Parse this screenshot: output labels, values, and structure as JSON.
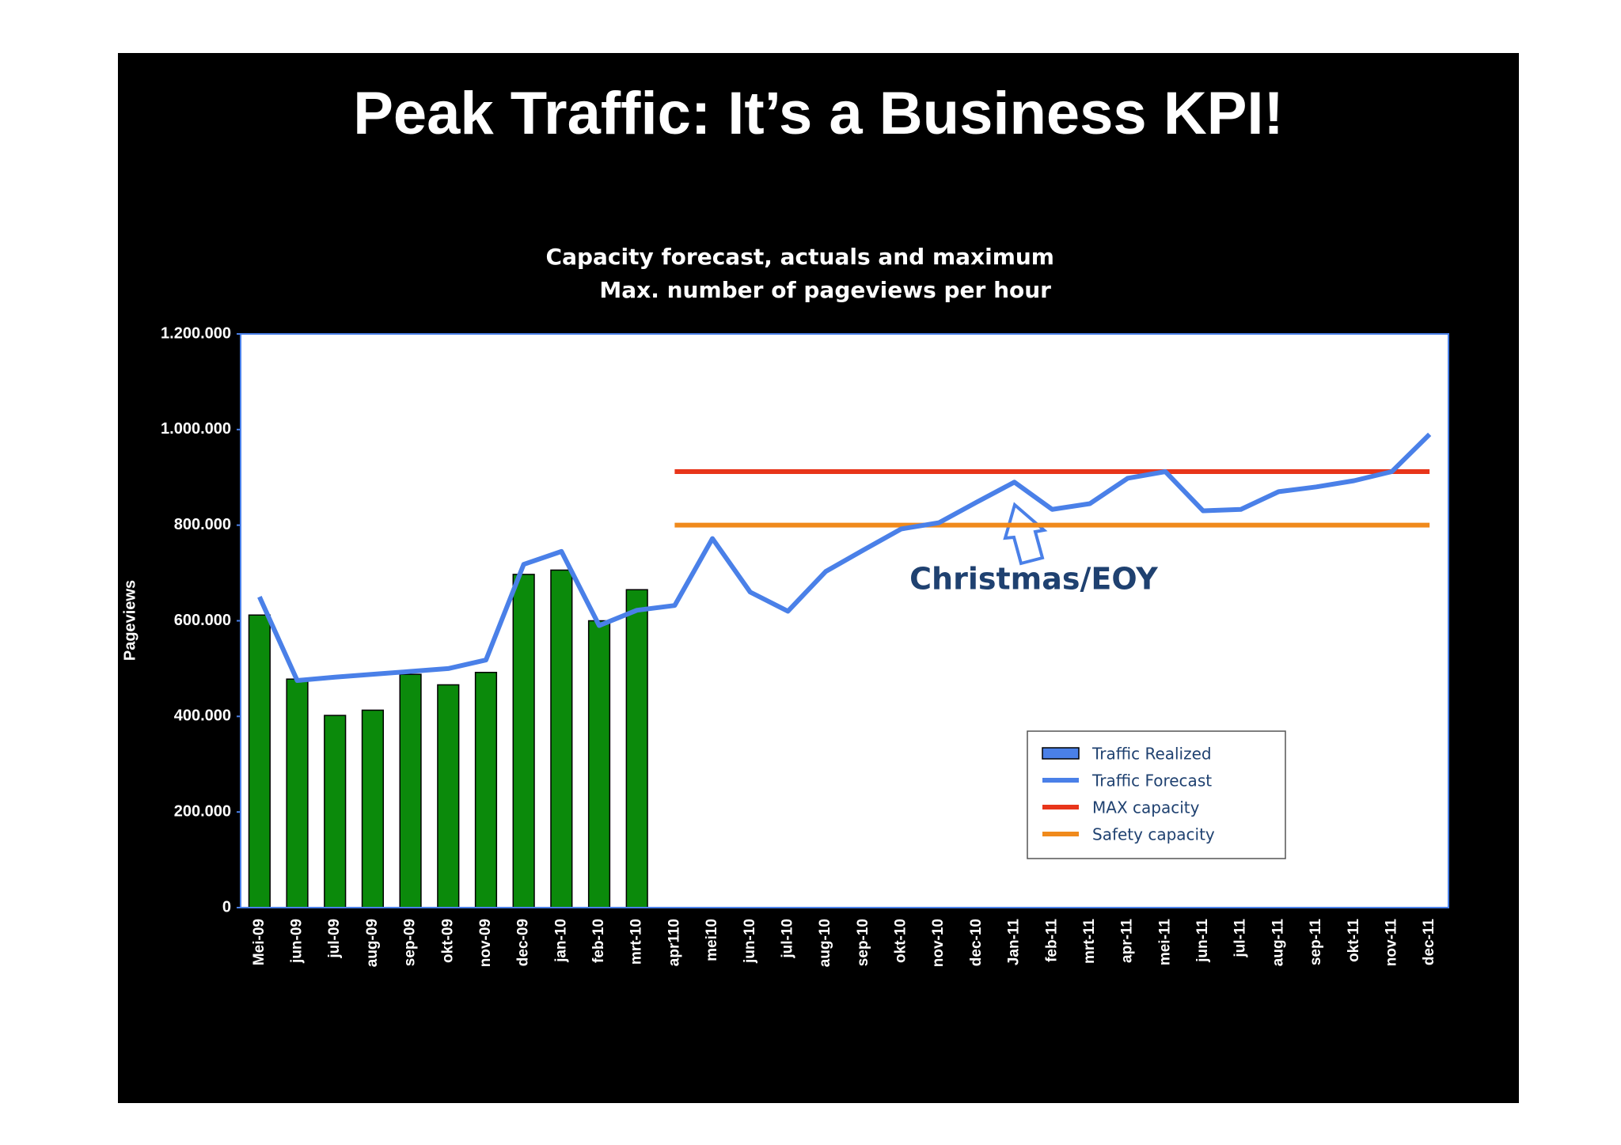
{
  "title": "Peak Traffic: It’s a Business KPI!",
  "chart_data": {
    "type": "bar",
    "title": "Capacity forecast, actuals and maximum",
    "subtitle": "Max. number of pageviews per hour",
    "y_label": "Pageviews",
    "annotation": "Christmas/EOY",
    "categories": [
      "Mei-09",
      "jun-09",
      "jul-09",
      "aug-09",
      "sep-09",
      "okt-09",
      "nov-09",
      "dec-09",
      "jan-10",
      "feb-10",
      "mrt-10",
      "apr110",
      "mei10",
      "jun-10",
      "jul-10",
      "aug-10",
      "sep-10",
      "okt-10",
      "nov-10",
      "dec-10",
      "Jan-11",
      "feb-11",
      "mrt-11",
      "apr-11",
      "mei-11",
      "jun-11",
      "jul-11",
      "aug-11",
      "sep-11",
      "okt-11",
      "nov-11",
      "dec-11"
    ],
    "series": [
      {
        "name": "Traffic Realized",
        "type": "bar",
        "color": "#0b8a0b",
        "legend_color": "#4a80e8",
        "values": [
          612000,
          478000,
          402000,
          413000,
          488000,
          466000,
          492000,
          697000,
          706000,
          600000,
          665000,
          null,
          null,
          null,
          null,
          null,
          null,
          null,
          null,
          null,
          null,
          null,
          null,
          null,
          null,
          null,
          null,
          null,
          null,
          null,
          null,
          null
        ]
      },
      {
        "name": "Traffic Forecast",
        "type": "line",
        "color": "#4a80e8",
        "values": [
          650000,
          475000,
          482000,
          488000,
          494000,
          500000,
          518000,
          718000,
          745000,
          590000,
          622000,
          632000,
          772000,
          660000,
          620000,
          703000,
          748000,
          792000,
          805000,
          848000,
          890000,
          833000,
          845000,
          898000,
          912000,
          830000,
          833000,
          870000,
          880000,
          893000,
          912000,
          990000
        ]
      },
      {
        "name": "MAX capacity",
        "type": "line",
        "color": "#e8351a",
        "values": [
          null,
          null,
          null,
          null,
          null,
          null,
          null,
          null,
          null,
          null,
          null,
          912000,
          912000,
          912000,
          912000,
          912000,
          912000,
          912000,
          912000,
          912000,
          912000,
          912000,
          912000,
          912000,
          912000,
          912000,
          912000,
          912000,
          912000,
          912000,
          912000,
          912000
        ]
      },
      {
        "name": "Safety capacity",
        "type": "line",
        "color": "#f08a1c",
        "values": [
          null,
          null,
          null,
          null,
          null,
          null,
          null,
          null,
          null,
          null,
          null,
          800000,
          800000,
          800000,
          800000,
          800000,
          800000,
          800000,
          800000,
          800000,
          800000,
          800000,
          800000,
          800000,
          800000,
          800000,
          800000,
          800000,
          800000,
          800000,
          800000,
          800000
        ]
      }
    ],
    "ylim": [
      0,
      1200000
    ],
    "yticks": [
      0,
      {
        "value": 200000,
        "label": "200.000"
      },
      {
        "value": 400000,
        "label": "400.000"
      },
      {
        "value": 600000,
        "label": "600.000"
      },
      {
        "value": 800000,
        "label": "800.000"
      },
      {
        "value": 1000000,
        "label": "1.000.000"
      },
      {
        "value": 1200000,
        "label": "1.200.000"
      }
    ],
    "grid": false,
    "legend": "lower right"
  }
}
